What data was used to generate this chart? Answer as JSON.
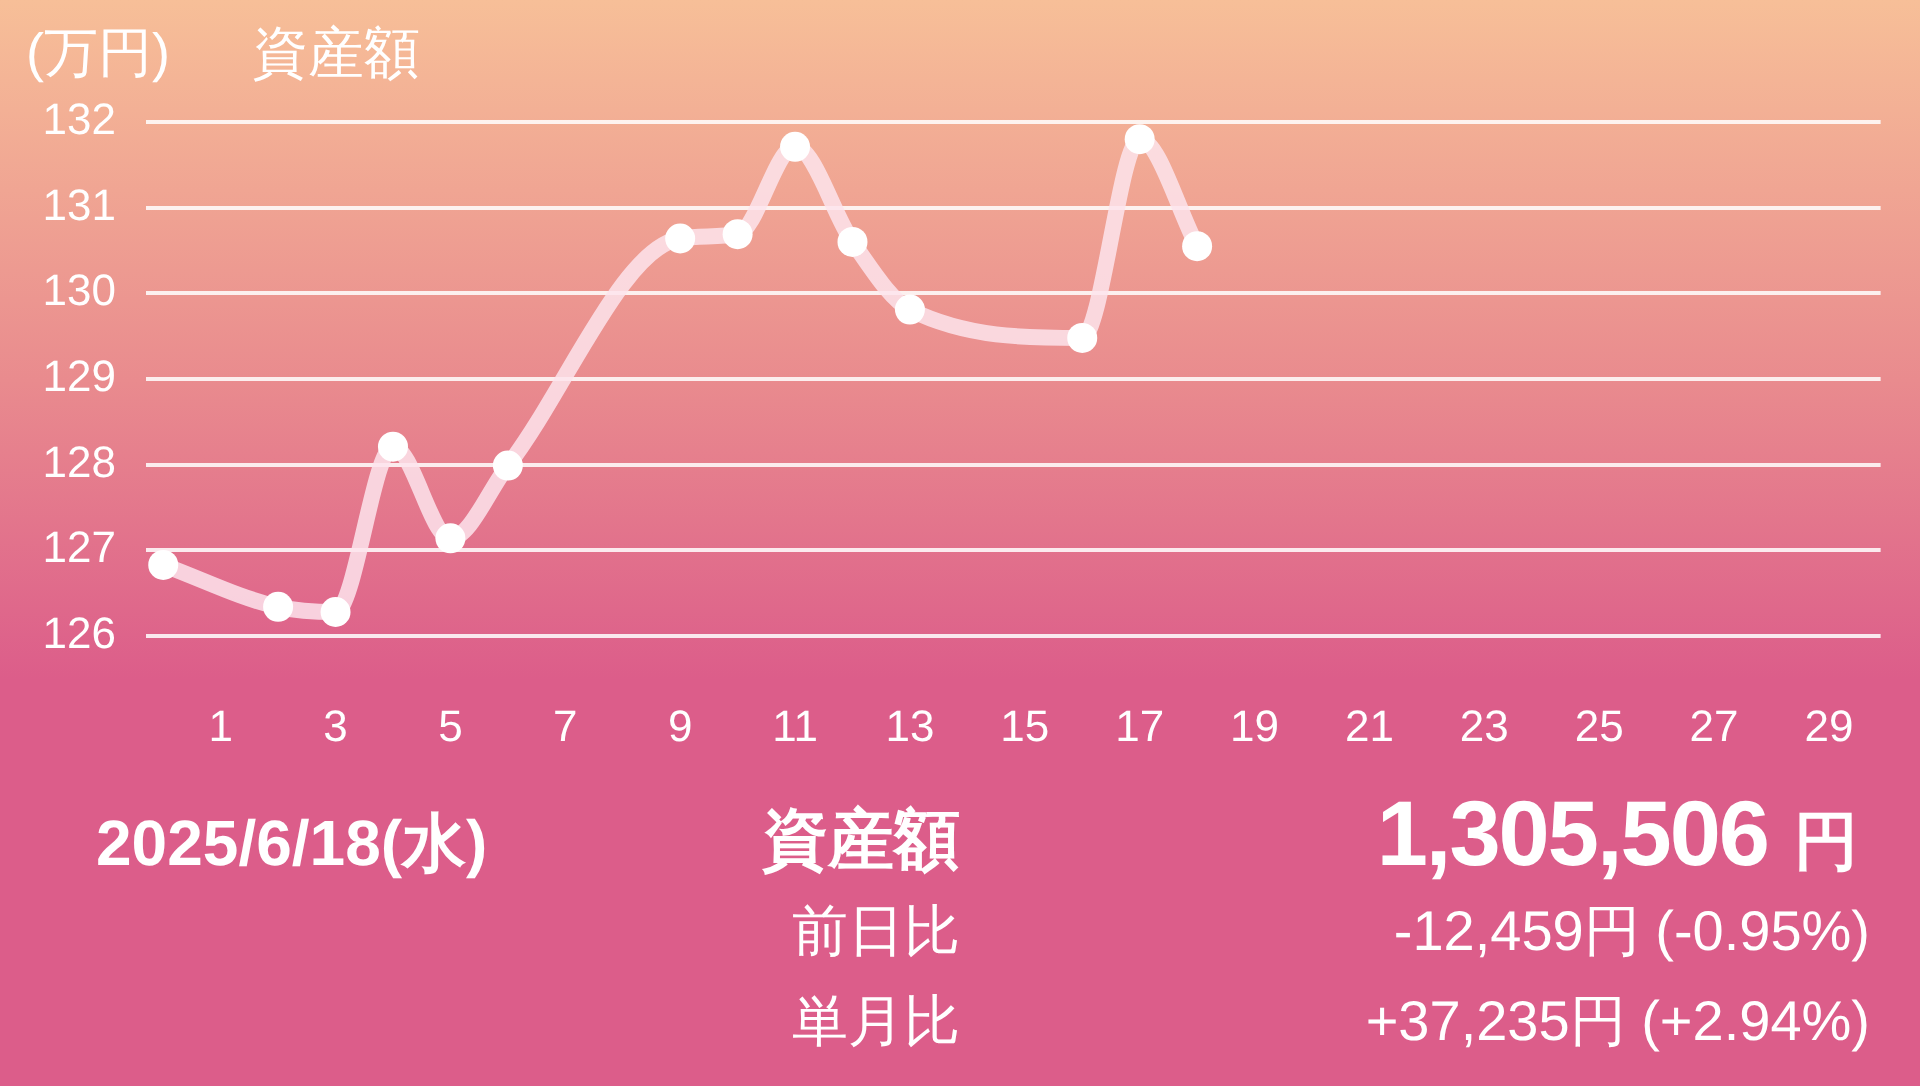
{
  "chart_data": {
    "type": "line",
    "title": "資産額",
    "ylabel": "(万円)",
    "x": [
      0,
      2,
      3,
      4,
      5,
      6,
      9,
      10,
      11,
      12,
      13,
      16,
      17,
      18
    ],
    "values": [
      126.83,
      126.34,
      126.28,
      128.21,
      127.14,
      127.99,
      130.64,
      130.69,
      131.71,
      130.6,
      129.81,
      129.48,
      131.8,
      130.55
    ],
    "color": "#fde4ec",
    "marker": "circle",
    "grid": "y",
    "xlim": [
      -0.3,
      29.9
    ],
    "xticks": [
      1,
      3,
      5,
      7,
      9,
      11,
      13,
      15,
      17,
      19,
      21,
      23,
      25,
      27,
      29
    ],
    "ylim": [
      126,
      132
    ],
    "yticks": [
      126,
      127,
      128,
      129,
      130,
      131,
      132
    ],
    "annotations": [
      "2025/6/18(水)",
      "資産額",
      "1,305,506",
      "円",
      "前日比",
      "-12,459円 (-0.95%)",
      "単月比",
      "+37,235円 (+2.94%)"
    ]
  }
}
